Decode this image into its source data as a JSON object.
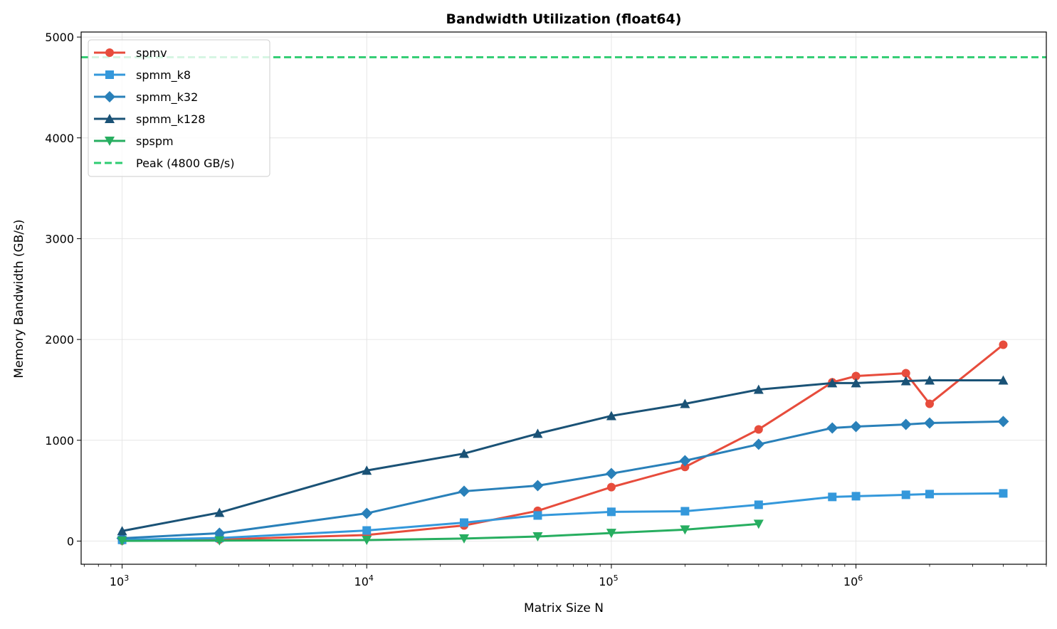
{
  "chart_data": {
    "type": "line",
    "title": "Bandwidth Utilization (float64)",
    "xlabel": "Matrix Size N",
    "ylabel": "Memory Bandwidth (GB/s)",
    "xscale": "log",
    "xlim": [
      680,
      6000000
    ],
    "ylim": [
      -230,
      5050
    ],
    "grid": true,
    "legend_position": "top-left",
    "x_ticks": [
      {
        "value": 1000,
        "base": "10",
        "exp": "3"
      },
      {
        "value": 10000,
        "base": "10",
        "exp": "4"
      },
      {
        "value": 100000,
        "base": "10",
        "exp": "5"
      },
      {
        "value": 1000000,
        "base": "10",
        "exp": "6"
      }
    ],
    "y_ticks": [
      "0",
      "1000",
      "2000",
      "3000",
      "4000",
      "5000"
    ],
    "series": [
      {
        "name": "spmv",
        "color": "#e74c3c",
        "marker": "circle",
        "x": [
          1000,
          2500,
          10000,
          25000,
          50000,
          100000,
          200000,
          400000,
          800000,
          1000000,
          1600000,
          2000000,
          4000000
        ],
        "y": [
          5,
          15,
          60,
          155,
          300,
          535,
          735,
          1108,
          1575,
          1637,
          1665,
          1362,
          1948
        ]
      },
      {
        "name": "spmm_k8",
        "color": "#3498db",
        "marker": "square",
        "x": [
          1000,
          2500,
          10000,
          25000,
          50000,
          100000,
          200000,
          400000,
          800000,
          1000000,
          1600000,
          2000000,
          4000000
        ],
        "y": [
          12,
          30,
          105,
          183,
          254,
          290,
          296,
          360,
          438,
          445,
          459,
          466,
          473
        ]
      },
      {
        "name": "spmm_k32",
        "color": "#2980b9",
        "marker": "diamond",
        "x": [
          1000,
          2500,
          10000,
          25000,
          50000,
          100000,
          200000,
          400000,
          800000,
          1000000,
          1600000,
          2000000,
          4000000
        ],
        "y": [
          28,
          78,
          275,
          494,
          550,
          670,
          797,
          960,
          1122,
          1136,
          1157,
          1171,
          1186
        ]
      },
      {
        "name": "spmm_k128",
        "color": "#1a5276",
        "marker": "triangle-up",
        "x": [
          1000,
          2500,
          10000,
          25000,
          50000,
          100000,
          200000,
          400000,
          800000,
          1000000,
          1600000,
          2000000,
          4000000
        ],
        "y": [
          100,
          282,
          700,
          868,
          1066,
          1242,
          1362,
          1503,
          1567,
          1567,
          1588,
          1595,
          1595
        ]
      },
      {
        "name": "spspm",
        "color": "#27ae60",
        "marker": "triangle-down",
        "x": [
          1000,
          2500,
          10000,
          25000,
          50000,
          100000,
          200000,
          400000
        ],
        "y": [
          2,
          5,
          10,
          25,
          45,
          80,
          113,
          170
        ]
      }
    ],
    "reference_lines": [
      {
        "name": "Peak (4800 GB/s)",
        "y": 4800,
        "color": "#2ecc71",
        "style": "dashed"
      }
    ]
  }
}
